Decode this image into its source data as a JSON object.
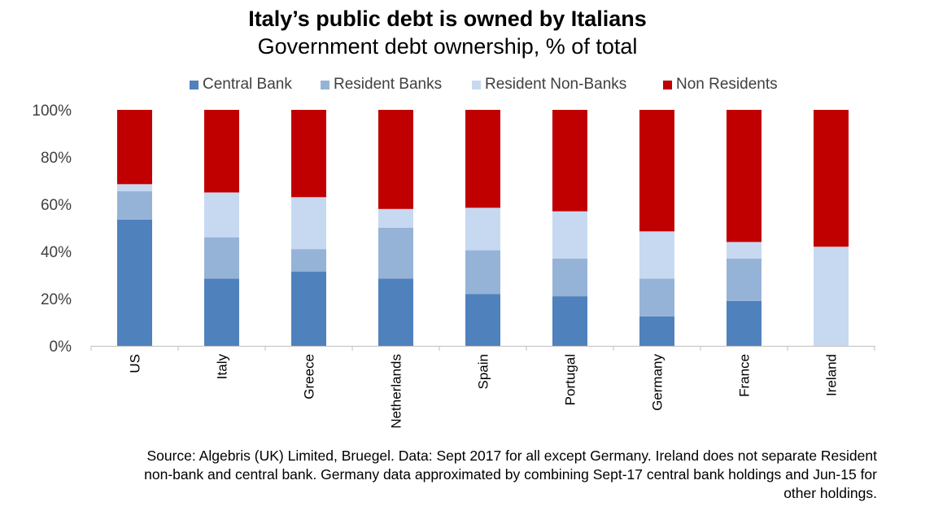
{
  "header": {
    "title": "Italy’s public debt is owned by Italians",
    "subtitle": "Government debt ownership, % of total"
  },
  "colors": {
    "central_bank": "#4F81BD",
    "resident_banks": "#95B3D7",
    "resident_non_banks": "#C6D9F1",
    "non_residents": "#C00000"
  },
  "chart_data": {
    "type": "bar",
    "stacked": true,
    "title": "Italy’s public debt is owned by Italians",
    "subtitle": "Government debt ownership, % of total",
    "categories": [
      "US",
      "Italy",
      "Greece",
      "Netherlands",
      "Spain",
      "Portugal",
      "Germany",
      "France",
      "Ireland"
    ],
    "series": [
      {
        "name": "Central Bank",
        "color": "#4F81BD",
        "values": [
          53.5,
          28.5,
          31.5,
          28.5,
          22,
          21,
          12.5,
          19,
          0
        ]
      },
      {
        "name": "Resident Banks",
        "color": "#95B3D7",
        "values": [
          12,
          17.5,
          9.5,
          21.5,
          18.5,
          16,
          16,
          18,
          0
        ]
      },
      {
        "name": "Resident Non-Banks",
        "color": "#C6D9F1",
        "values": [
          3,
          19,
          22,
          8,
          18,
          20,
          20,
          7,
          42
        ]
      },
      {
        "name": "Non Residents",
        "color": "#C00000",
        "values": [
          31.5,
          35,
          37,
          42,
          41.5,
          43,
          51.5,
          56,
          58
        ]
      }
    ],
    "yticks": [
      "0%",
      "20%",
      "40%",
      "60%",
      "80%",
      "100%"
    ],
    "ylim": [
      0,
      100
    ],
    "legend_position": "top",
    "grid": false
  },
  "footer": {
    "source_lines": [
      "Source: Algebris (UK) Limited, Bruegel. Data: Sept 2017 for all except Germany. Ireland does not separate Resident",
      "non-bank and central bank. Germany data approximated by combining Sept-17 central bank holdings and Jun-15 for",
      "other holdings."
    ]
  }
}
